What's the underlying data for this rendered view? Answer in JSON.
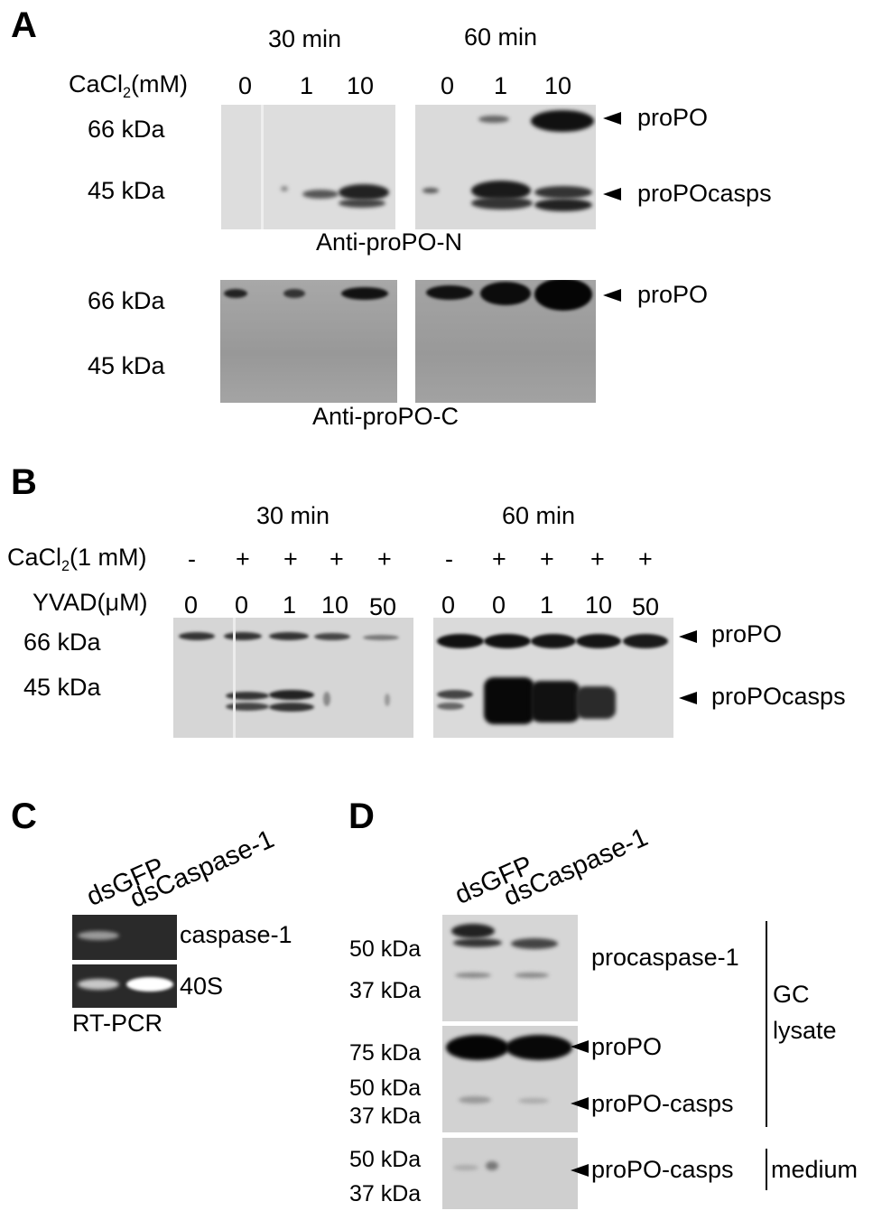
{
  "panels": [
    "A",
    "B",
    "C",
    "D"
  ],
  "panel_a": {
    "time_30": "30 min",
    "time_60": "60 min",
    "cacl_label_pre": "CaCl",
    "cacl_label_sub": "2",
    "cacl_label_post": "(mM)",
    "lanes_30": [
      "0",
      "1",
      "10"
    ],
    "lanes_60": [
      "0",
      "1",
      "10"
    ],
    "mw_66": "66 kDa",
    "mw_45": "45 kDa",
    "band_propo": "proPO",
    "band_propocasps": "proPOcasps",
    "antibody_n": "Anti-proPO-N",
    "antibody_c": "Anti-proPO-C"
  },
  "panel_b": {
    "time_30": "30 min",
    "time_60": "60 min",
    "cacl_label_pre": "CaCl",
    "cacl_label_sub": "2",
    "cacl_label_post": "(1 mM)",
    "cacl_signs": [
      "-",
      "+",
      "+",
      "+",
      "+",
      "-",
      "+",
      "+",
      "+",
      "+"
    ],
    "yvad_label": "YVAD(μM)",
    "yvad_values": [
      "0",
      "0",
      "1",
      "10",
      "50",
      "0",
      "0",
      "1",
      "10",
      "50"
    ],
    "mw_66": "66 kDa",
    "mw_45": "45 kDa",
    "band_propo": "proPO",
    "band_propocasps": "proPOcasps"
  },
  "panel_c": {
    "lane_1": "dsGFP",
    "lane_2": "dsCaspase-1",
    "band_caspase": "caspase-1",
    "band_40s": "40S",
    "method": "RT-PCR"
  },
  "panel_d": {
    "lane_1": "dsGFP",
    "lane_2": "dsCaspase-1",
    "mw_50": "50 kDa",
    "mw_37": "37 kDa",
    "mw_75": "75 kDa",
    "band_procaspase": "procaspase-1",
    "band_propo": "proPO",
    "band_propocasps": "proPO-casps",
    "group_gc": "GC",
    "group_lysate": "lysate",
    "group_medium": "medium"
  },
  "colors": {
    "blot_light": "#d9d9d9",
    "blot_dark": "#9a9a9a",
    "gel_bg": "#202020",
    "band_dark": "#111111"
  }
}
